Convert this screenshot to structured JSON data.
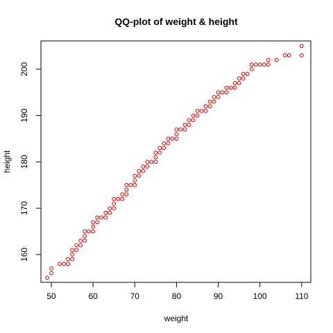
{
  "chart_data": {
    "type": "scatter",
    "title": "QQ-plot of weight & height",
    "xlabel": "weight",
    "ylabel": "height",
    "xlim": [
      47.5,
      112.2
    ],
    "ylim": [
      154,
      206.1
    ],
    "xticks": [
      50,
      60,
      70,
      80,
      90,
      100,
      110
    ],
    "yticks": [
      160,
      170,
      180,
      190,
      200
    ],
    "grid": false,
    "point_color": "#cc0000",
    "marker": "open-circle",
    "points": [
      [
        49,
        155
      ],
      [
        50,
        156
      ],
      [
        50,
        157
      ],
      [
        52,
        158
      ],
      [
        53,
        158
      ],
      [
        54,
        158
      ],
      [
        54,
        159
      ],
      [
        55,
        159
      ],
      [
        55,
        160
      ],
      [
        55,
        161
      ],
      [
        56,
        161
      ],
      [
        56,
        162
      ],
      [
        57,
        162
      ],
      [
        57,
        163
      ],
      [
        58,
        163
      ],
      [
        58,
        164
      ],
      [
        58,
        165
      ],
      [
        59,
        165
      ],
      [
        60,
        165
      ],
      [
        60,
        166
      ],
      [
        60,
        167
      ],
      [
        61,
        167
      ],
      [
        61,
        168
      ],
      [
        62,
        168
      ],
      [
        63,
        168
      ],
      [
        63,
        169
      ],
      [
        64,
        169
      ],
      [
        64,
        170
      ],
      [
        65,
        170
      ],
      [
        65,
        171
      ],
      [
        65,
        172
      ],
      [
        66,
        172
      ],
      [
        67,
        172
      ],
      [
        67,
        173
      ],
      [
        68,
        173
      ],
      [
        68,
        174
      ],
      [
        68,
        175
      ],
      [
        69,
        175
      ],
      [
        70,
        175
      ],
      [
        70,
        176
      ],
      [
        70,
        177
      ],
      [
        71,
        177
      ],
      [
        71,
        178
      ],
      [
        72,
        178
      ],
      [
        72,
        179
      ],
      [
        73,
        179
      ],
      [
        73,
        180
      ],
      [
        74,
        180
      ],
      [
        75,
        180
      ],
      [
        75,
        181
      ],
      [
        75,
        182
      ],
      [
        76,
        182
      ],
      [
        76,
        183
      ],
      [
        77,
        183
      ],
      [
        77,
        184
      ],
      [
        78,
        184
      ],
      [
        78,
        185
      ],
      [
        79,
        185
      ],
      [
        80,
        185
      ],
      [
        80,
        186
      ],
      [
        80,
        187
      ],
      [
        81,
        187
      ],
      [
        82,
        187
      ],
      [
        82,
        188
      ],
      [
        83,
        188
      ],
      [
        83,
        189
      ],
      [
        84,
        189
      ],
      [
        84,
        190
      ],
      [
        85,
        190
      ],
      [
        85,
        191
      ],
      [
        86,
        191
      ],
      [
        87,
        191
      ],
      [
        87,
        192
      ],
      [
        88,
        192
      ],
      [
        88,
        193
      ],
      [
        89,
        193
      ],
      [
        89,
        194
      ],
      [
        90,
        194
      ],
      [
        90,
        195
      ],
      [
        91,
        195
      ],
      [
        92,
        195
      ],
      [
        92,
        196
      ],
      [
        93,
        196
      ],
      [
        94,
        196
      ],
      [
        94,
        197
      ],
      [
        95,
        197
      ],
      [
        95,
        198
      ],
      [
        96,
        198
      ],
      [
        96,
        199
      ],
      [
        97,
        199
      ],
      [
        98,
        200
      ],
      [
        98,
        201
      ],
      [
        99,
        201
      ],
      [
        100,
        201
      ],
      [
        101,
        201
      ],
      [
        102,
        201
      ],
      [
        102,
        202
      ],
      [
        104,
        202
      ],
      [
        106,
        203
      ],
      [
        107,
        203
      ],
      [
        110,
        203
      ],
      [
        110,
        205
      ]
    ]
  }
}
